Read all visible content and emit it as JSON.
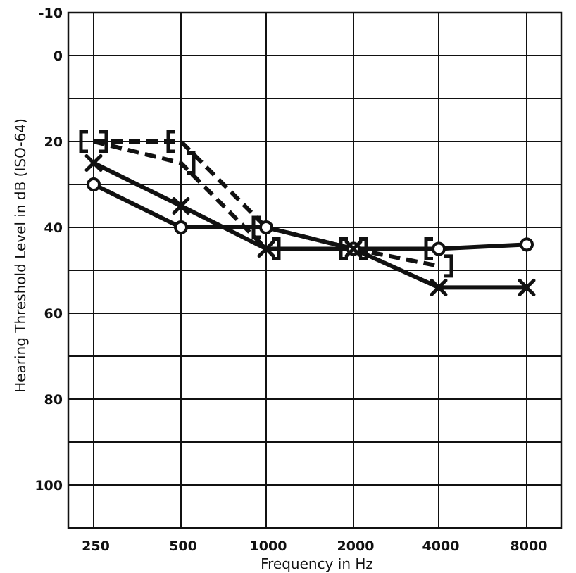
{
  "chart_data": {
    "type": "line",
    "xlabel": "Frequency in Hz",
    "ylabel": "Hearing Threshold Level in dB (ISO-64)",
    "categories": [
      "250",
      "500",
      "1000",
      "2000",
      "4000",
      "8000"
    ],
    "yticks": [
      "-10",
      "0",
      "20",
      "40",
      "60",
      "80",
      "100"
    ],
    "ylim": [
      -10,
      110
    ],
    "y_inverted": true,
    "grid": true,
    "series": [
      {
        "marker": "circle",
        "style": "solid",
        "color": "#111111",
        "values": [
          30,
          40,
          40,
          45,
          45,
          44
        ]
      },
      {
        "marker": "x",
        "style": "solid",
        "color": "#111111",
        "values": [
          25,
          35,
          45,
          45,
          54,
          54
        ]
      },
      {
        "marker": "bracket-left",
        "style": "dashed",
        "color": "#111111",
        "values": [
          20,
          20,
          40,
          45,
          45,
          null
        ]
      },
      {
        "marker": "bracket-right",
        "style": "dashed",
        "color": "#111111",
        "values": [
          20,
          25,
          45,
          45,
          49,
          null
        ]
      }
    ]
  }
}
